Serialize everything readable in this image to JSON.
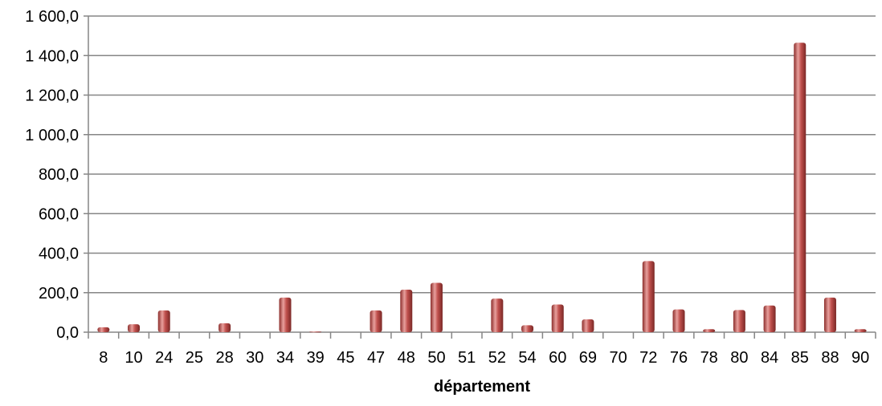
{
  "chart_data": {
    "type": "bar",
    "title": "",
    "xlabel": "département",
    "ylabel": "",
    "ylim": [
      0,
      1600
    ],
    "yticks": [
      "0,0",
      "200,0",
      "400,0",
      "600,0",
      "800,0",
      "1 000,0",
      "1 200,0",
      "1 400,0",
      "1 600,0"
    ],
    "ytick_values": [
      0,
      200,
      400,
      600,
      800,
      1000,
      1200,
      1400,
      1600
    ],
    "grid": true,
    "legend": "none",
    "categories": [
      "8",
      "10",
      "24",
      "25",
      "28",
      "30",
      "34",
      "39",
      "45",
      "47",
      "48",
      "50",
      "51",
      "52",
      "54",
      "60",
      "69",
      "70",
      "72",
      "76",
      "78",
      "80",
      "84",
      "85",
      "88",
      "90"
    ],
    "values": [
      25,
      40,
      110,
      0,
      45,
      0,
      175,
      3,
      0,
      110,
      215,
      250,
      0,
      170,
      35,
      140,
      65,
      0,
      360,
      115,
      15,
      112,
      135,
      1465,
      175,
      15
    ],
    "colors": {
      "bar": "#c0504d",
      "bar_light": "#e8a09d",
      "bar_dark": "#8c2e2c",
      "grid": "#868686",
      "axis": "#868686"
    }
  }
}
